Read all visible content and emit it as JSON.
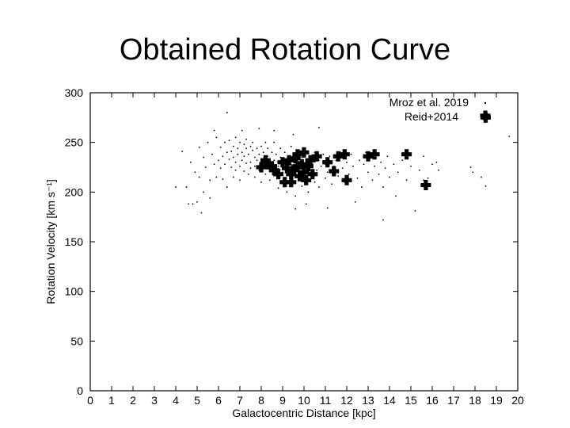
{
  "slide": {
    "title": "Obtained Rotation Curve"
  },
  "chart_data": {
    "type": "scatter",
    "title": "",
    "xlabel": "Galactocentric Distance [kpc]",
    "ylabel": "Rotation Velocity [km s⁻¹]",
    "xlim": [
      0,
      20
    ],
    "ylim": [
      0,
      300
    ],
    "xticks": [
      0,
      1,
      2,
      3,
      4,
      5,
      6,
      7,
      8,
      9,
      10,
      11,
      12,
      13,
      14,
      15,
      16,
      17,
      18,
      19,
      20
    ],
    "yticks": [
      0,
      50,
      100,
      150,
      200,
      250,
      300
    ],
    "grid": false,
    "legend_position": "top-right",
    "series": [
      {
        "name": "Mroz et al. 2019",
        "marker": "dot",
        "color": "#000000",
        "points": [
          [
            4.3,
            241
          ],
          [
            4.5,
            205
          ],
          [
            4.6,
            188
          ],
          [
            4.7,
            230
          ],
          [
            4.9,
            220
          ],
          [
            5.0,
            190
          ],
          [
            5.1,
            245
          ],
          [
            5.1,
            215
          ],
          [
            5.2,
            179
          ],
          [
            5.3,
            235
          ],
          [
            5.3,
            200
          ],
          [
            5.4,
            225
          ],
          [
            5.5,
            250
          ],
          [
            5.6,
            194
          ],
          [
            5.6,
            212
          ],
          [
            5.7,
            238
          ],
          [
            5.8,
            228
          ],
          [
            5.9,
            215
          ],
          [
            5.9,
            255
          ],
          [
            6.0,
            232
          ],
          [
            6.1,
            224
          ],
          [
            6.1,
            245
          ],
          [
            6.2,
            213
          ],
          [
            6.2,
            236
          ],
          [
            6.3,
            250
          ],
          [
            6.3,
            228
          ],
          [
            6.4,
            240
          ],
          [
            6.4,
            205
          ],
          [
            6.5,
            233
          ],
          [
            6.5,
            252
          ],
          [
            6.6,
            225
          ],
          [
            6.6,
            241
          ],
          [
            6.7,
            215
          ],
          [
            6.7,
            246
          ],
          [
            6.7,
            235
          ],
          [
            6.8,
            230
          ],
          [
            6.8,
            255
          ],
          [
            6.8,
            222
          ],
          [
            6.9,
            244
          ],
          [
            6.9,
            238
          ],
          [
            7.0,
            226
          ],
          [
            7.0,
            250
          ],
          [
            7.0,
            212
          ],
          [
            7.1,
            240
          ],
          [
            7.1,
            232
          ],
          [
            7.2,
            248
          ],
          [
            7.2,
            221
          ],
          [
            7.2,
            236
          ],
          [
            7.3,
            244
          ],
          [
            7.3,
            229
          ],
          [
            7.3,
            253
          ],
          [
            7.4,
            218
          ],
          [
            7.4,
            238
          ],
          [
            7.5,
            246
          ],
          [
            7.5,
            230
          ],
          [
            7.5,
            224
          ],
          [
            7.6,
            242
          ],
          [
            7.6,
            250
          ],
          [
            7.7,
            235
          ],
          [
            7.7,
            226
          ],
          [
            7.7,
            215
          ],
          [
            7.8,
            244
          ],
          [
            7.8,
            232
          ],
          [
            7.9,
            238
          ],
          [
            7.9,
            222
          ],
          [
            8.0,
            246
          ],
          [
            8.0,
            228
          ],
          [
            8.0,
            210
          ],
          [
            8.1,
            240
          ],
          [
            8.1,
            232
          ],
          [
            8.2,
            250
          ],
          [
            8.2,
            225
          ],
          [
            8.2,
            218
          ],
          [
            8.3,
            236
          ],
          [
            8.3,
            244
          ],
          [
            8.4,
            228
          ],
          [
            8.4,
            212
          ],
          [
            8.5,
            240
          ],
          [
            8.5,
            222
          ],
          [
            8.6,
            232
          ],
          [
            8.6,
            250
          ],
          [
            8.7,
            218
          ],
          [
            8.7,
            238
          ],
          [
            8.8,
            226
          ],
          [
            8.8,
            204
          ],
          [
            8.9,
            235
          ],
          [
            8.9,
            244
          ],
          [
            9.0,
            220
          ],
          [
            9.0,
            230
          ],
          [
            9.1,
            212
          ],
          [
            9.1,
            240
          ],
          [
            9.2,
            224
          ],
          [
            9.2,
            200
          ],
          [
            9.3,
            234
          ],
          [
            9.3,
            218
          ],
          [
            9.4,
            246
          ],
          [
            9.4,
            228
          ],
          [
            9.5,
            210
          ],
          [
            9.5,
            236
          ],
          [
            9.6,
            222
          ],
          [
            9.6,
            196
          ],
          [
            9.7,
            232
          ],
          [
            9.7,
            215
          ],
          [
            9.8,
            240
          ],
          [
            9.8,
            226
          ],
          [
            9.9,
            206
          ],
          [
            9.9,
            235
          ],
          [
            10.0,
            220
          ],
          [
            10.0,
            244
          ],
          [
            10.1,
            212
          ],
          [
            10.1,
            230
          ],
          [
            10.2,
            225
          ],
          [
            10.2,
            200
          ],
          [
            10.3,
            236
          ],
          [
            10.3,
            218
          ],
          [
            10.4,
            228
          ],
          [
            10.5,
            210
          ],
          [
            10.5,
            240
          ],
          [
            10.6,
            222
          ],
          [
            10.7,
            232
          ],
          [
            10.7,
            205
          ],
          [
            10.8,
            226
          ],
          [
            10.9,
            238
          ],
          [
            11.0,
            214
          ],
          [
            11.0,
            228
          ],
          [
            11.1,
            220
          ],
          [
            11.2,
            236
          ],
          [
            11.3,
            208
          ],
          [
            11.4,
            226
          ],
          [
            11.5,
            232
          ],
          [
            11.6,
            216
          ],
          [
            11.7,
            240
          ],
          [
            11.8,
            224
          ],
          [
            11.9,
            210
          ],
          [
            12.0,
            230
          ],
          [
            12.1,
            218
          ],
          [
            12.2,
            238
          ],
          [
            12.3,
            226
          ],
          [
            12.5,
            214
          ],
          [
            12.6,
            232
          ],
          [
            12.7,
            205
          ],
          [
            12.8,
            228
          ],
          [
            12.9,
            240
          ],
          [
            13.0,
            220
          ],
          [
            13.1,
            234
          ],
          [
            13.2,
            212
          ],
          [
            13.3,
            226
          ],
          [
            13.4,
            238
          ],
          [
            13.5,
            218
          ],
          [
            13.6,
            230
          ],
          [
            13.7,
            205
          ],
          [
            13.8,
            224
          ],
          [
            13.9,
            236
          ],
          [
            14.0,
            215
          ],
          [
            14.2,
            228
          ],
          [
            14.4,
            220
          ],
          [
            14.6,
            232
          ],
          [
            14.8,
            212
          ],
          [
            15.0,
            226
          ],
          [
            15.2,
            181
          ],
          [
            15.4,
            222
          ],
          [
            15.6,
            236
          ],
          [
            15.8,
            214
          ],
          [
            16.0,
            228
          ],
          [
            16.3,
            222
          ],
          [
            17.8,
            225
          ],
          [
            17.9,
            220
          ],
          [
            18.3,
            215
          ],
          [
            18.5,
            206
          ],
          [
            19.6,
            256
          ],
          [
            5.8,
            262
          ],
          [
            6.4,
            280
          ],
          [
            7.1,
            262
          ],
          [
            7.9,
            264
          ],
          [
            8.6,
            262
          ],
          [
            9.5,
            258
          ],
          [
            10.7,
            265
          ],
          [
            11.1,
            184
          ],
          [
            13.7,
            172
          ],
          [
            12.4,
            190
          ],
          [
            14.3,
            196
          ],
          [
            10.1,
            188
          ],
          [
            9.6,
            183
          ],
          [
            4.0,
            205
          ],
          [
            4.8,
            188
          ],
          [
            15.6,
            212
          ],
          [
            16.2,
            230
          ]
        ]
      },
      {
        "name": "Reid+2014",
        "marker": "cross",
        "color": "#000000",
        "points": [
          [
            8.0,
            225
          ],
          [
            8.2,
            232
          ],
          [
            8.3,
            228
          ],
          [
            8.5,
            226
          ],
          [
            8.6,
            222
          ],
          [
            8.8,
            218
          ],
          [
            9.0,
            230
          ],
          [
            9.1,
            210
          ],
          [
            9.2,
            224
          ],
          [
            9.3,
            232
          ],
          [
            9.4,
            218
          ],
          [
            9.4,
            210
          ],
          [
            9.5,
            222
          ],
          [
            9.6,
            234
          ],
          [
            9.7,
            226
          ],
          [
            9.7,
            238
          ],
          [
            9.8,
            216
          ],
          [
            9.9,
            228
          ],
          [
            10.0,
            240
          ],
          [
            10.0,
            220
          ],
          [
            10.1,
            212
          ],
          [
            10.2,
            226
          ],
          [
            10.3,
            232
          ],
          [
            10.4,
            218
          ],
          [
            10.6,
            236
          ],
          [
            11.1,
            230
          ],
          [
            11.4,
            221
          ],
          [
            11.6,
            236
          ],
          [
            11.9,
            238
          ],
          [
            12.0,
            212
          ],
          [
            13.0,
            236
          ],
          [
            13.3,
            238
          ],
          [
            14.8,
            238
          ],
          [
            15.7,
            207
          ],
          [
            18.5,
            275
          ]
        ]
      }
    ]
  }
}
